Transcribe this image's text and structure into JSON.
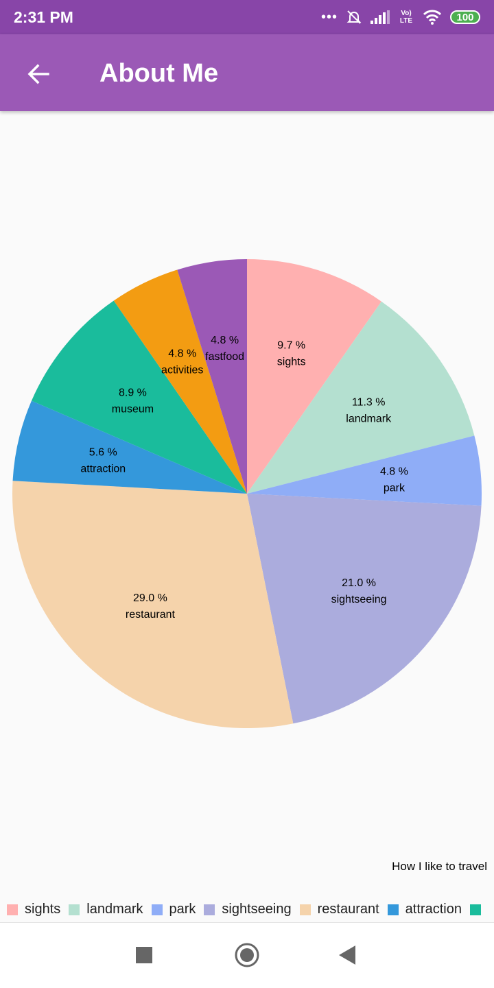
{
  "status_bar": {
    "time": "2:31 PM",
    "dots": "•••",
    "network": "Vo) LTE",
    "battery": "100"
  },
  "app_bar": {
    "title": "About Me"
  },
  "chart_data": {
    "type": "pie",
    "description": "How I like to travel",
    "slices": [
      {
        "label": "sights",
        "value": 9.7,
        "value_text": "9.7 %",
        "color": "#ffb0b0"
      },
      {
        "label": "landmark",
        "value": 11.3,
        "value_text": "11.3 %",
        "color": "#b4e0d0"
      },
      {
        "label": "park",
        "value": 4.8,
        "value_text": "4.8 %",
        "color": "#8fadf7"
      },
      {
        "label": "sightseeing",
        "value": 21.0,
        "value_text": "21.0 %",
        "color": "#abacdd"
      },
      {
        "label": "restaurant",
        "value": 29.0,
        "value_text": "29.0 %",
        "color": "#f5d3ab"
      },
      {
        "label": "attraction",
        "value": 5.6,
        "value_text": "5.6 %",
        "color": "#3498db"
      },
      {
        "label": "museum",
        "value": 8.9,
        "value_text": "8.9 %",
        "color": "#1abc9c"
      },
      {
        "label": "activities",
        "value": 4.8,
        "value_text": "4.8 %",
        "color": "#f39c12"
      },
      {
        "label": "fastfood",
        "value": 4.8,
        "value_text": "4.8 %",
        "color": "#9b59b6"
      }
    ],
    "legend": {
      "position": "bottom-left",
      "items": [
        "sights",
        "landmark",
        "park",
        "sightseeing",
        "restaurant",
        "attraction",
        ""
      ]
    }
  }
}
